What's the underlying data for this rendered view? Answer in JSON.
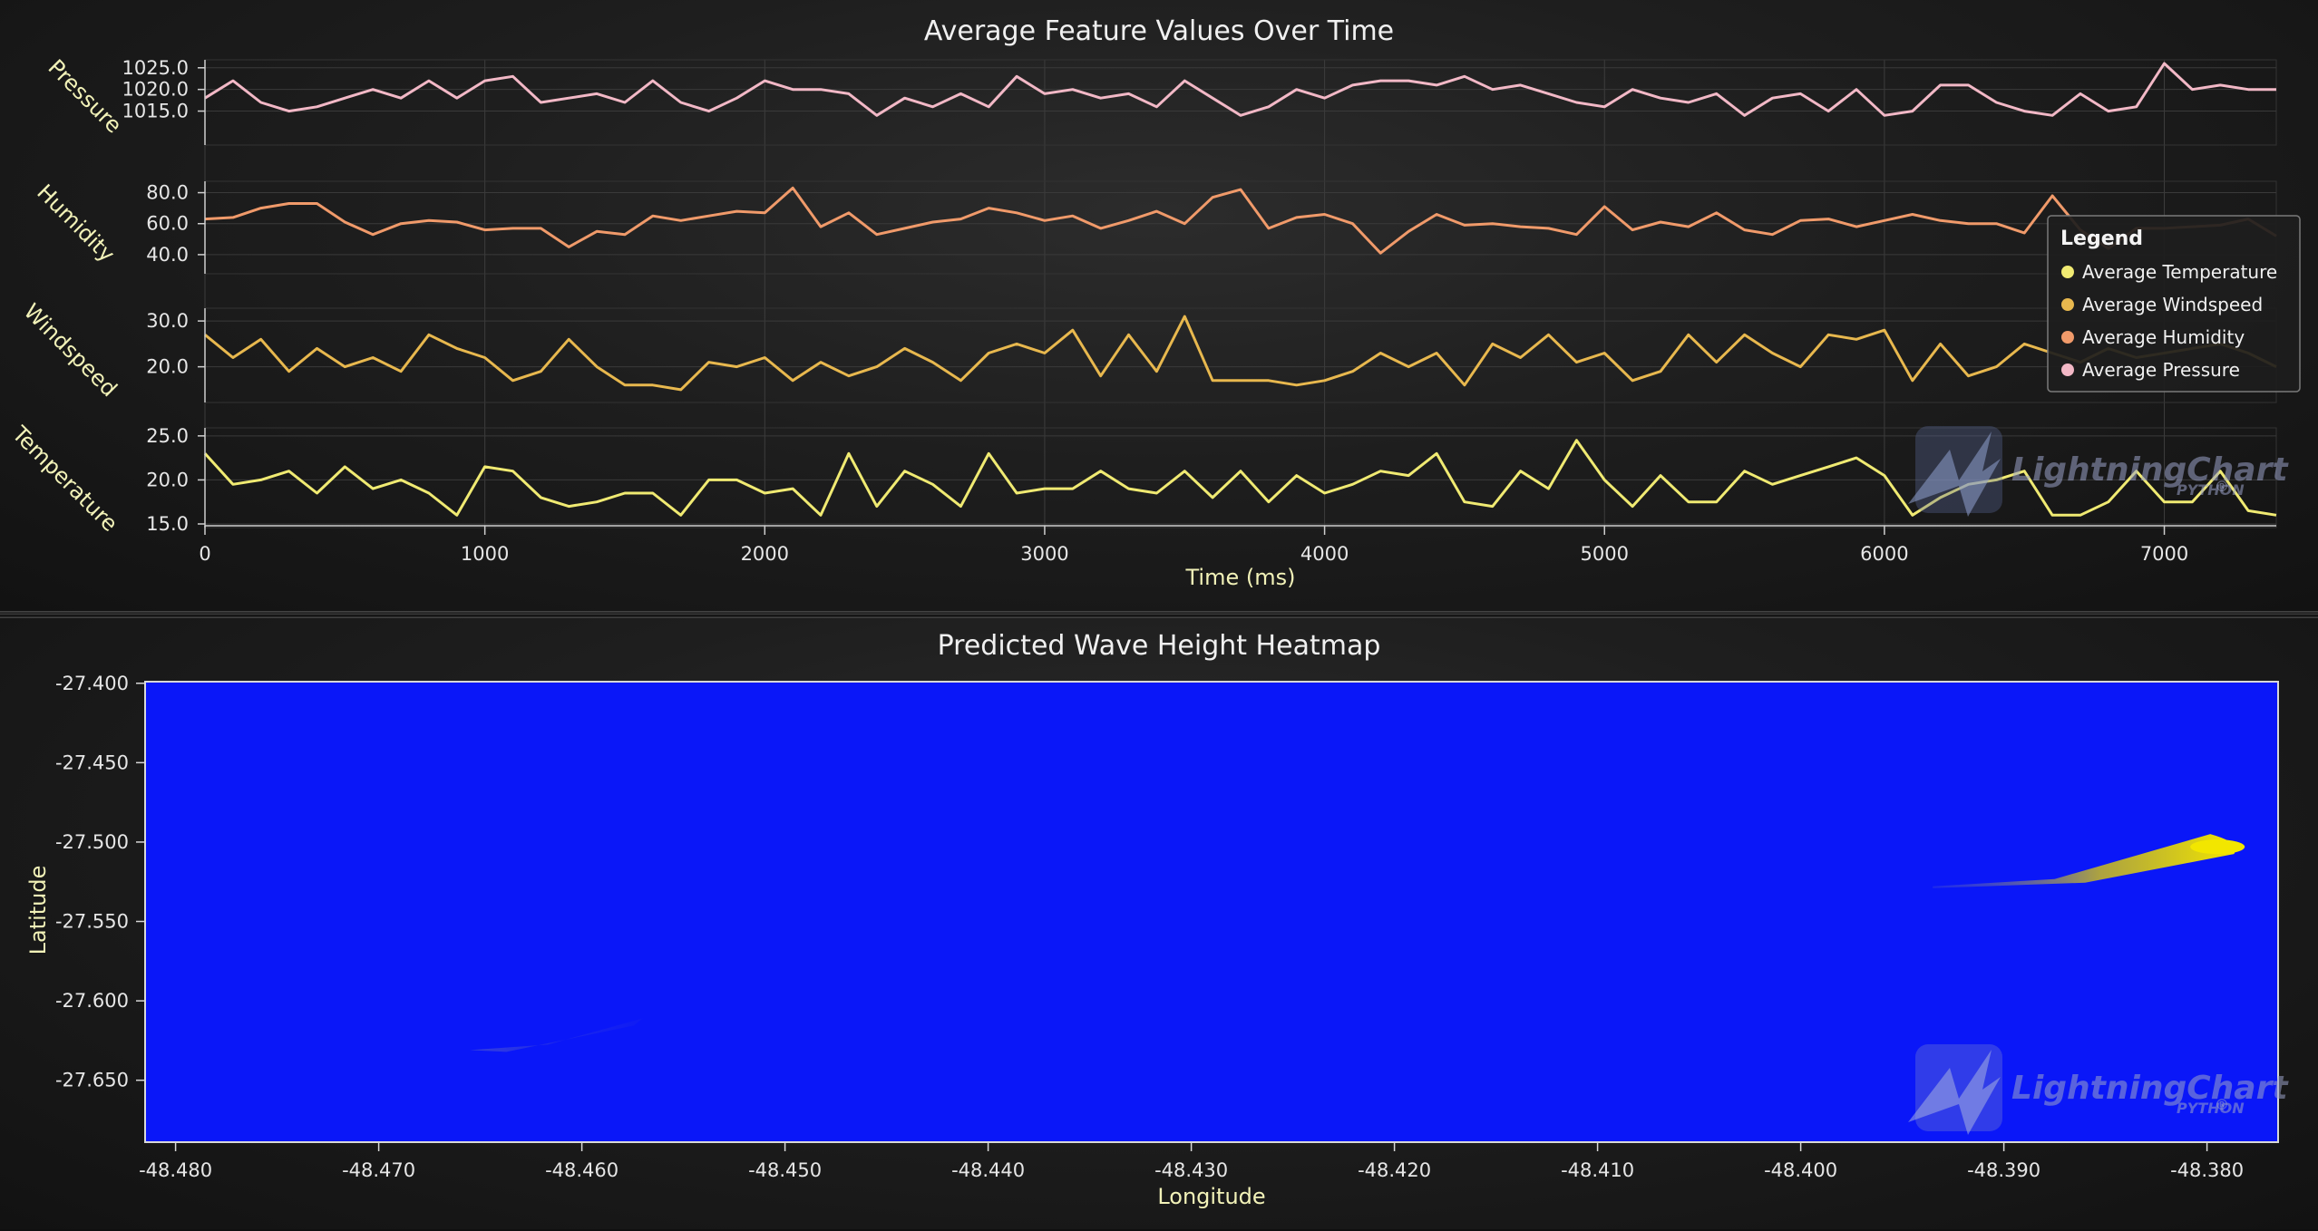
{
  "chart_data": [
    {
      "type": "line",
      "title": "Average Feature Values Over Time",
      "xlabel": "Time (ms)",
      "xlim": [
        0,
        7400
      ],
      "x_ticks": [
        "0",
        "1000",
        "2000",
        "3000",
        "4000",
        "5000",
        "6000",
        "7000"
      ],
      "x": [
        0,
        100,
        200,
        300,
        400,
        500,
        600,
        700,
        800,
        900,
        1000,
        1100,
        1200,
        1300,
        1400,
        1500,
        1600,
        1700,
        1800,
        1900,
        2000,
        2100,
        2200,
        2300,
        2400,
        2500,
        2600,
        2700,
        2800,
        2900,
        3000,
        3100,
        3200,
        3300,
        3400,
        3500,
        3600,
        3700,
        3800,
        3900,
        4000,
        4100,
        4200,
        4300,
        4400,
        4500,
        4600,
        4700,
        4800,
        4900,
        5000,
        5100,
        5200,
        5300,
        5400,
        5500,
        5600,
        5700,
        5800,
        5900,
        6000,
        6100,
        6200,
        6300,
        6400,
        6500,
        6600,
        6700,
        6800,
        6900,
        7000,
        7100,
        7200,
        7300,
        7400
      ],
      "legend": {
        "title": "Legend",
        "items": [
          "Average Temperature",
          "Average Windspeed",
          "Average Humidity",
          "Average Pressure"
        ],
        "position": "right"
      },
      "series": [
        {
          "name": "Average Pressure",
          "ylabel": "Pressure",
          "color": "#f2b8c6",
          "ylim": [
            1008,
            1026
          ],
          "y_ticks": [
            "1025.0",
            "1020.0",
            "1015.0"
          ],
          "values": [
            1018,
            1022,
            1017,
            1015,
            1016,
            1018,
            1020,
            1018,
            1022,
            1018,
            1022,
            1023,
            1017,
            1018,
            1019,
            1017,
            1022,
            1017,
            1015,
            1018,
            1022,
            1020,
            1020,
            1019,
            1014,
            1018,
            1016,
            1019,
            1016,
            1023,
            1019,
            1020,
            1018,
            1019,
            1016,
            1022,
            1018,
            1014,
            1016,
            1020,
            1018,
            1021,
            1022,
            1022,
            1021,
            1023,
            1020,
            1021,
            1019,
            1017,
            1016,
            1020,
            1018,
            1017,
            1019,
            1014,
            1018,
            1019,
            1015,
            1020,
            1014,
            1015,
            1021,
            1021,
            1017,
            1015,
            1014,
            1019,
            1015,
            1016,
            1026,
            1020,
            1021,
            1020,
            1020
          ]
        },
        {
          "name": "Average Humidity",
          "ylabel": "Humidity",
          "color": "#f09a6a",
          "ylim": [
            30,
            85
          ],
          "y_ticks": [
            "80.0",
            "60.0",
            "40.0"
          ],
          "values": [
            63,
            64,
            70,
            73,
            73,
            61,
            53,
            60,
            62,
            61,
            56,
            57,
            57,
            45,
            55,
            53,
            65,
            62,
            65,
            68,
            67,
            83,
            58,
            67,
            53,
            57,
            61,
            63,
            70,
            67,
            62,
            65,
            57,
            62,
            68,
            60,
            77,
            82,
            57,
            64,
            66,
            60,
            41,
            55,
            66,
            59,
            60,
            58,
            57,
            53,
            71,
            56,
            61,
            58,
            67,
            56,
            53,
            62,
            63,
            58,
            62,
            66,
            62,
            60,
            60,
            54,
            78,
            56,
            44,
            57,
            57,
            58,
            59,
            63,
            52
          ]
        },
        {
          "name": "Average Windspeed",
          "ylabel": "Windspeed",
          "color": "#e8b84e",
          "ylim": [
            13,
            32
          ],
          "y_ticks": [
            "30.0",
            "20.0"
          ],
          "values": [
            27,
            22,
            26,
            19,
            24,
            20,
            22,
            19,
            27,
            24,
            22,
            17,
            19,
            26,
            20,
            16,
            16,
            15,
            21,
            20,
            22,
            17,
            21,
            18,
            20,
            24,
            21,
            17,
            23,
            25,
            23,
            28,
            18,
            27,
            19,
            31,
            17,
            17,
            17,
            16,
            17,
            19,
            23,
            20,
            23,
            16,
            25,
            22,
            27,
            21,
            23,
            17,
            19,
            27,
            21,
            27,
            23,
            20,
            27,
            26,
            28,
            17,
            25,
            18,
            20,
            25,
            23,
            21,
            24,
            22,
            23,
            24,
            25,
            23,
            20
          ]
        },
        {
          "name": "Average Temperature",
          "ylabel": "Temperature",
          "color": "#f0ea72",
          "ylim": [
            15,
            25.5
          ],
          "y_ticks": [
            "25.0",
            "20.0",
            "15.0"
          ],
          "values": [
            23,
            19.5,
            20,
            21,
            18.5,
            21.5,
            19,
            20,
            18.5,
            16,
            21.5,
            21,
            18,
            17,
            17.5,
            18.5,
            18.5,
            16,
            20,
            20,
            18.5,
            19,
            16,
            23,
            17,
            21,
            19.5,
            17,
            23,
            18.5,
            19,
            19,
            21,
            19,
            18.5,
            21,
            18,
            21,
            17.5,
            20.5,
            18.5,
            19.5,
            21,
            20.5,
            23,
            17.5,
            17,
            21,
            19,
            24.5,
            20,
            17,
            20.5,
            17.5,
            17.5,
            21,
            19.5,
            20.5,
            21.5,
            22.5,
            20.5,
            16,
            18,
            19.5,
            20,
            21,
            16,
            16,
            17.5,
            21,
            17.5,
            17.5,
            21,
            16.5,
            16
          ]
        }
      ]
    },
    {
      "type": "heatmap",
      "title": "Predicted Wave Height Heatmap",
      "xlabel": "Longitude",
      "ylabel": "Latitude",
      "xlim": [
        -48.4815,
        -48.3765
      ],
      "ylim": [
        -27.689,
        -27.399
      ],
      "x_ticks": [
        "-48.480",
        "-48.470",
        "-48.460",
        "-48.450",
        "-48.440",
        "-48.430",
        "-48.420",
        "-48.410",
        "-48.400",
        "-48.390",
        "-48.380"
      ],
      "y_ticks": [
        "-27.400",
        "-27.450",
        "-27.500",
        "-27.550",
        "-27.600",
        "-27.650"
      ],
      "colors": {
        "background": "#0a17f8",
        "low": "#0a17f8",
        "high": "#f2e600"
      },
      "hotspots": [
        {
          "lon_from": -48.3935,
          "lon_to": -48.3785,
          "lat_from": -27.529,
          "lat_to": -27.495,
          "intensity": 1.0
        },
        {
          "lon_from": -48.4655,
          "lon_to": -48.457,
          "lat_from": -27.631,
          "lat_to": -27.611,
          "intensity": 0.12
        }
      ]
    }
  ],
  "watermark": {
    "brand": "LightningChart",
    "registered": "®",
    "sub": "PYTHON"
  }
}
